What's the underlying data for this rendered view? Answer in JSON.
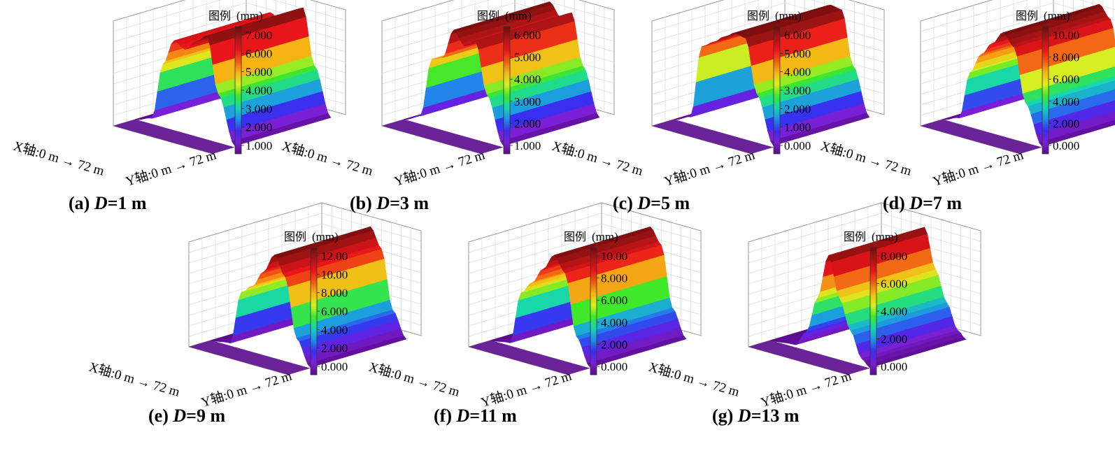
{
  "figure": {
    "legend_title": "图例",
    "unit": "(mm)",
    "x_axis_label": "X轴:0 m",
    "x_axis_end": "72 m",
    "y_axis_label": "Y轴:0 m",
    "y_axis_end": "72 m",
    "colormap": [
      "#5b0c8c",
      "#7a1fd6",
      "#3a2cf0",
      "#1f8fe8",
      "#16d6b0",
      "#3fe82a",
      "#d8ef22",
      "#f6b514",
      "#f25a14",
      "#e8141a",
      "#a81414",
      "#6e0d0d"
    ]
  },
  "chart_data": [
    {
      "type": "surface",
      "caption_prefix": "(a) ",
      "caption_var": "D",
      "caption_suffix": "=1 m",
      "D_m": 1,
      "legend_ticks": [
        "7.000",
        "6.000",
        "5.000",
        "4.000",
        "3.000",
        "2.000",
        "1.000"
      ],
      "zmin": 0,
      "zmax": 7.5,
      "profile": [
        {
          "x": 0,
          "z": 0
        },
        {
          "x": 12,
          "z": 0.4
        },
        {
          "x": 20,
          "z": 4.5
        },
        {
          "x": 28,
          "z": 6.4
        },
        {
          "x": 36,
          "z": 6.0
        },
        {
          "x": 44,
          "z": 6.8
        },
        {
          "x": 52,
          "z": 7.4
        },
        {
          "x": 60,
          "z": 3.5
        },
        {
          "x": 72,
          "z": 0.1
        }
      ]
    },
    {
      "type": "surface",
      "caption_prefix": "(b) ",
      "caption_var": "D",
      "caption_suffix": "=3 m",
      "D_m": 3,
      "legend_ticks": [
        "6.000",
        "5.000",
        "4.000",
        "3.000",
        "2.000",
        "1.000"
      ],
      "zmin": 0,
      "zmax": 6.5,
      "profile": [
        {
          "x": 0,
          "z": 0
        },
        {
          "x": 12,
          "z": 0.5
        },
        {
          "x": 20,
          "z": 4.2
        },
        {
          "x": 28,
          "z": 4.5
        },
        {
          "x": 36,
          "z": 6.4
        },
        {
          "x": 44,
          "z": 5.6
        },
        {
          "x": 52,
          "z": 6.1
        },
        {
          "x": 60,
          "z": 3.0
        },
        {
          "x": 72,
          "z": 0.1
        }
      ]
    },
    {
      "type": "surface",
      "caption_prefix": "(c) ",
      "caption_var": "D",
      "caption_suffix": "=5 m",
      "D_m": 5,
      "legend_ticks": [
        "6.000",
        "5.000",
        "4.000",
        "3.000",
        "2.000",
        "1.000",
        "0.000"
      ],
      "zmin": 0,
      "zmax": 6,
      "profile": [
        {
          "x": 0,
          "z": 0
        },
        {
          "x": 12,
          "z": 0.4
        },
        {
          "x": 20,
          "z": 4.6
        },
        {
          "x": 28,
          "z": 5.0
        },
        {
          "x": 36,
          "z": 5.5
        },
        {
          "x": 44,
          "z": 5.9
        },
        {
          "x": 52,
          "z": 5.8
        },
        {
          "x": 60,
          "z": 2.8
        },
        {
          "x": 72,
          "z": 0.1
        }
      ]
    },
    {
      "type": "surface",
      "caption_prefix": "(d) ",
      "caption_var": "D",
      "caption_suffix": "=7 m",
      "D_m": 7,
      "legend_ticks": [
        "10.00",
        "8.000",
        "6.000",
        "4.000",
        "2.000",
        "0.000"
      ],
      "zmin": 0,
      "zmax": 10.5,
      "profile": [
        {
          "x": 0,
          "z": 0
        },
        {
          "x": 12,
          "z": 0.6
        },
        {
          "x": 20,
          "z": 5.5
        },
        {
          "x": 28,
          "z": 7.6
        },
        {
          "x": 36,
          "z": 9.0
        },
        {
          "x": 44,
          "z": 10.4
        },
        {
          "x": 52,
          "z": 9.2
        },
        {
          "x": 60,
          "z": 4.0
        },
        {
          "x": 72,
          "z": 0.1
        }
      ]
    },
    {
      "type": "surface",
      "caption_prefix": "(e) ",
      "caption_var": "D",
      "caption_suffix": "=9 m",
      "D_m": 9,
      "legend_ticks": [
        "12.00",
        "10.00",
        "8.000",
        "6.000",
        "4.000",
        "2.000",
        "0.000"
      ],
      "zmin": 0,
      "zmax": 12,
      "profile": [
        {
          "x": 0,
          "z": 0
        },
        {
          "x": 14,
          "z": 0.3
        },
        {
          "x": 22,
          "z": 6.5
        },
        {
          "x": 30,
          "z": 7.5
        },
        {
          "x": 38,
          "z": 9.5
        },
        {
          "x": 46,
          "z": 11.8
        },
        {
          "x": 54,
          "z": 9.6
        },
        {
          "x": 62,
          "z": 3.0
        },
        {
          "x": 72,
          "z": 0.1
        }
      ]
    },
    {
      "type": "surface",
      "caption_prefix": "(f) ",
      "caption_var": "D",
      "caption_suffix": "=11 m",
      "D_m": 11,
      "legend_ticks": [
        "10.00",
        "8.000",
        "6.000",
        "4.000",
        "2.000",
        "0.000"
      ],
      "zmin": 0,
      "zmax": 11.2,
      "profile": [
        {
          "x": 0,
          "z": 0
        },
        {
          "x": 14,
          "z": 0.3
        },
        {
          "x": 22,
          "z": 6.0
        },
        {
          "x": 30,
          "z": 7.4
        },
        {
          "x": 38,
          "z": 9.2
        },
        {
          "x": 46,
          "z": 11.0
        },
        {
          "x": 54,
          "z": 9.4
        },
        {
          "x": 62,
          "z": 3.0
        },
        {
          "x": 72,
          "z": 0.1
        }
      ]
    },
    {
      "type": "surface",
      "caption_prefix": "(g) ",
      "caption_var": "D",
      "caption_suffix": "=13 m",
      "D_m": 13,
      "legend_ticks": [
        "8.000",
        "6.000",
        "4.000",
        "2.000",
        "0.000"
      ],
      "zmin": 0,
      "zmax": 8.5,
      "profile": [
        {
          "x": 0,
          "z": 0
        },
        {
          "x": 18,
          "z": 0.2
        },
        {
          "x": 26,
          "z": 1.5
        },
        {
          "x": 34,
          "z": 4.5
        },
        {
          "x": 42,
          "z": 8.2
        },
        {
          "x": 50,
          "z": 5.0
        },
        {
          "x": 58,
          "z": 2.6
        },
        {
          "x": 66,
          "z": 0.6
        },
        {
          "x": 72,
          "z": 0.05
        }
      ]
    }
  ]
}
